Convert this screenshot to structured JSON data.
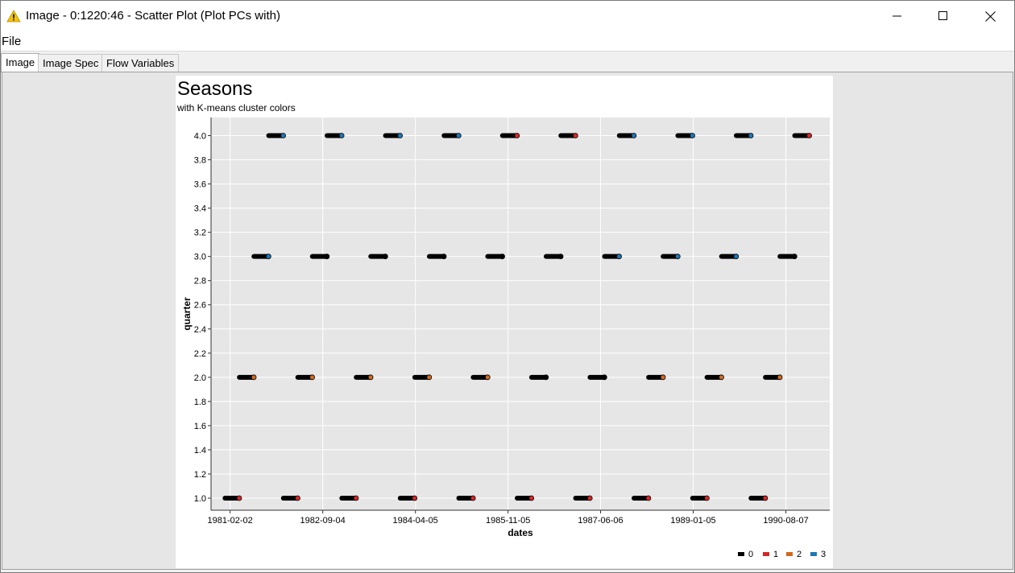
{
  "window": {
    "title": "Image - 0:1220:46 - Scatter Plot (Plot PCs with)"
  },
  "menu": {
    "file_label": "File"
  },
  "tabs": [
    {
      "label": "Image"
    },
    {
      "label": "Image Spec"
    },
    {
      "label": "Flow Variables"
    }
  ],
  "chart_data": {
    "type": "scatter",
    "title": "Seasons",
    "subtitle": "with K-means cluster colors",
    "xlabel": "dates",
    "ylabel": "quarter",
    "xlim": [
      "1980-10-06",
      "1991-05-08"
    ],
    "ylim": [
      0.9,
      4.15
    ],
    "x_ticks": [
      "1981-02-02",
      "1982-09-04",
      "1984-04-05",
      "1985-11-05",
      "1987-06-06",
      "1989-01-05",
      "1990-08-07"
    ],
    "y_ticks": [
      "1.0",
      "1.2",
      "1.4",
      "1.6",
      "1.8",
      "2.0",
      "2.2",
      "2.4",
      "2.6",
      "2.8",
      "3.0",
      "3.2",
      "3.4",
      "3.6",
      "3.8",
      "4.0"
    ],
    "grid": true,
    "legend_position": "bottom-right",
    "series_colors": {
      "0": "#000000",
      "1": "#d62728",
      "2": "#d2691e",
      "3": "#1f77b4"
    },
    "legend": [
      {
        "label": "0",
        "color": "#000000"
      },
      {
        "label": "1",
        "color": "#d62728"
      },
      {
        "label": "2",
        "color": "#d2691e"
      },
      {
        "label": "3",
        "color": "#1f77b4"
      }
    ],
    "clusters": [
      {
        "quarter": 1.0,
        "start": "1981-01-01",
        "end": "1981-03-31",
        "last_cluster": "1"
      },
      {
        "quarter": 1.0,
        "start": "1982-01-01",
        "end": "1982-03-31",
        "last_cluster": "1"
      },
      {
        "quarter": 1.0,
        "start": "1983-01-01",
        "end": "1983-03-31",
        "last_cluster": "1"
      },
      {
        "quarter": 1.0,
        "start": "1984-01-01",
        "end": "1984-03-31",
        "last_cluster": "1"
      },
      {
        "quarter": 1.0,
        "start": "1985-01-01",
        "end": "1985-03-31",
        "last_cluster": "1"
      },
      {
        "quarter": 1.0,
        "start": "1986-01-01",
        "end": "1986-03-31",
        "last_cluster": "1"
      },
      {
        "quarter": 1.0,
        "start": "1987-01-01",
        "end": "1987-03-31",
        "last_cluster": "1"
      },
      {
        "quarter": 1.0,
        "start": "1988-01-01",
        "end": "1988-03-31",
        "last_cluster": "1"
      },
      {
        "quarter": 1.0,
        "start": "1989-01-01",
        "end": "1989-03-31",
        "last_cluster": "1"
      },
      {
        "quarter": 1.0,
        "start": "1990-01-01",
        "end": "1990-03-31",
        "last_cluster": "1"
      },
      {
        "quarter": 2.0,
        "start": "1981-04-01",
        "end": "1981-06-30",
        "last_cluster": "2"
      },
      {
        "quarter": 2.0,
        "start": "1982-04-01",
        "end": "1982-06-30",
        "last_cluster": "2"
      },
      {
        "quarter": 2.0,
        "start": "1983-04-01",
        "end": "1983-06-30",
        "last_cluster": "2"
      },
      {
        "quarter": 2.0,
        "start": "1984-04-01",
        "end": "1984-06-30",
        "last_cluster": "2"
      },
      {
        "quarter": 2.0,
        "start": "1985-04-01",
        "end": "1985-06-30",
        "last_cluster": "2"
      },
      {
        "quarter": 2.0,
        "start": "1986-04-01",
        "end": "1986-06-30",
        "last_cluster": "0"
      },
      {
        "quarter": 2.0,
        "start": "1987-04-01",
        "end": "1987-06-30",
        "last_cluster": "0"
      },
      {
        "quarter": 2.0,
        "start": "1988-04-01",
        "end": "1988-06-30",
        "last_cluster": "2"
      },
      {
        "quarter": 2.0,
        "start": "1989-04-01",
        "end": "1989-06-30",
        "last_cluster": "2"
      },
      {
        "quarter": 2.0,
        "start": "1990-04-01",
        "end": "1990-06-30",
        "last_cluster": "2"
      },
      {
        "quarter": 3.0,
        "start": "1981-07-01",
        "end": "1981-09-30",
        "last_cluster": "3"
      },
      {
        "quarter": 3.0,
        "start": "1982-07-01",
        "end": "1982-09-30",
        "last_cluster": "0"
      },
      {
        "quarter": 3.0,
        "start": "1983-07-01",
        "end": "1983-09-30",
        "last_cluster": "0"
      },
      {
        "quarter": 3.0,
        "start": "1984-07-01",
        "end": "1984-09-30",
        "last_cluster": "0"
      },
      {
        "quarter": 3.0,
        "start": "1985-07-01",
        "end": "1985-09-30",
        "last_cluster": "0"
      },
      {
        "quarter": 3.0,
        "start": "1986-07-01",
        "end": "1986-09-30",
        "last_cluster": "0"
      },
      {
        "quarter": 3.0,
        "start": "1987-07-01",
        "end": "1987-09-30",
        "last_cluster": "3"
      },
      {
        "quarter": 3.0,
        "start": "1988-07-01",
        "end": "1988-09-30",
        "last_cluster": "3"
      },
      {
        "quarter": 3.0,
        "start": "1989-07-01",
        "end": "1989-09-30",
        "last_cluster": "3"
      },
      {
        "quarter": 3.0,
        "start": "1990-07-01",
        "end": "1990-09-30",
        "last_cluster": "0"
      },
      {
        "quarter": 4.0,
        "start": "1981-10-01",
        "end": "1981-12-31",
        "last_cluster": "3"
      },
      {
        "quarter": 4.0,
        "start": "1982-10-01",
        "end": "1982-12-31",
        "last_cluster": "3"
      },
      {
        "quarter": 4.0,
        "start": "1983-10-01",
        "end": "1983-12-31",
        "last_cluster": "3"
      },
      {
        "quarter": 4.0,
        "start": "1984-10-01",
        "end": "1984-12-31",
        "last_cluster": "3"
      },
      {
        "quarter": 4.0,
        "start": "1985-10-01",
        "end": "1985-12-31",
        "last_cluster": "1"
      },
      {
        "quarter": 4.0,
        "start": "1986-10-01",
        "end": "1986-12-31",
        "last_cluster": "1"
      },
      {
        "quarter": 4.0,
        "start": "1987-10-01",
        "end": "1987-12-31",
        "last_cluster": "3"
      },
      {
        "quarter": 4.0,
        "start": "1988-10-01",
        "end": "1988-12-31",
        "last_cluster": "3"
      },
      {
        "quarter": 4.0,
        "start": "1989-10-01",
        "end": "1989-12-31",
        "last_cluster": "3"
      },
      {
        "quarter": 4.0,
        "start": "1990-10-01",
        "end": "1990-12-31",
        "last_cluster": "1"
      }
    ]
  }
}
